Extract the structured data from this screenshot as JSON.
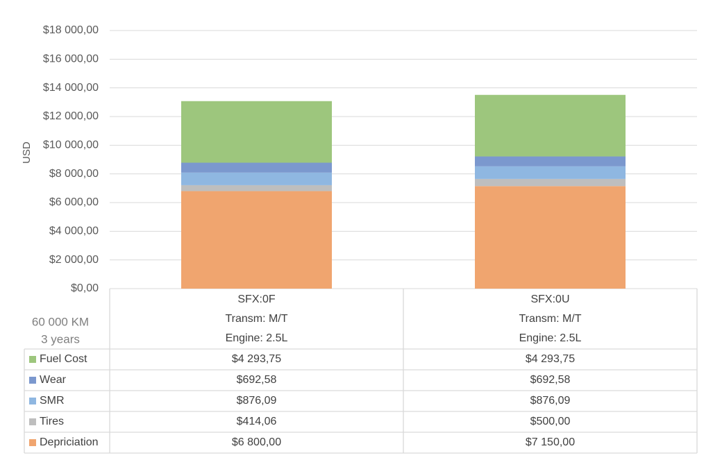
{
  "chart_data": {
    "type": "bar",
    "stacked": true,
    "ylabel": "USD",
    "ylim": [
      0,
      18000
    ],
    "y_ticks": [
      "$18 000,00",
      "$16 000,00",
      "$14 000,00",
      "$12 000,00",
      "$10 000,00",
      "$8 000,00",
      "$6 000,00",
      "$4 000,00",
      "$2 000,00",
      "$0,00"
    ],
    "y_tick_values": [
      18000,
      16000,
      14000,
      12000,
      10000,
      8000,
      6000,
      4000,
      2000,
      0
    ],
    "grid": true,
    "categories": [
      {
        "line1": "SFX:0F",
        "line2": "Transm: M/T",
        "line3": "Engine: 2.5L"
      },
      {
        "line1": "SFX:0U",
        "line2": "Transm: M/T",
        "line3": "Engine: 2.5L"
      }
    ],
    "table_header": {
      "line1": "60 000 KM",
      "line2": "3 years"
    },
    "series": [
      {
        "name": "Fuel Cost",
        "color": "#9DC67D",
        "values": [
          4293.75,
          4293.75
        ],
        "labels": [
          "$4 293,75",
          "$4 293,75"
        ]
      },
      {
        "name": "Wear",
        "color": "#7B98CE",
        "values": [
          692.58,
          692.58
        ],
        "labels": [
          "$692,58",
          "$692,58"
        ]
      },
      {
        "name": "SMR",
        "color": "#8FB7E1",
        "values": [
          876.09,
          876.09
        ],
        "labels": [
          "$876,09",
          "$876,09"
        ]
      },
      {
        "name": "Tires",
        "color": "#BEBEBE",
        "values": [
          414.06,
          500.0
        ],
        "labels": [
          "$414,06",
          "$500,00"
        ]
      },
      {
        "name": "Depriciation",
        "color": "#F0A56F",
        "values": [
          6800.0,
          7150.0
        ],
        "labels": [
          "$6 800,00",
          "$7 150,00"
        ]
      }
    ],
    "stack_order_bottom_to_top": [
      "Depriciation",
      "Tires",
      "SMR",
      "Wear",
      "Fuel Cost"
    ]
  }
}
